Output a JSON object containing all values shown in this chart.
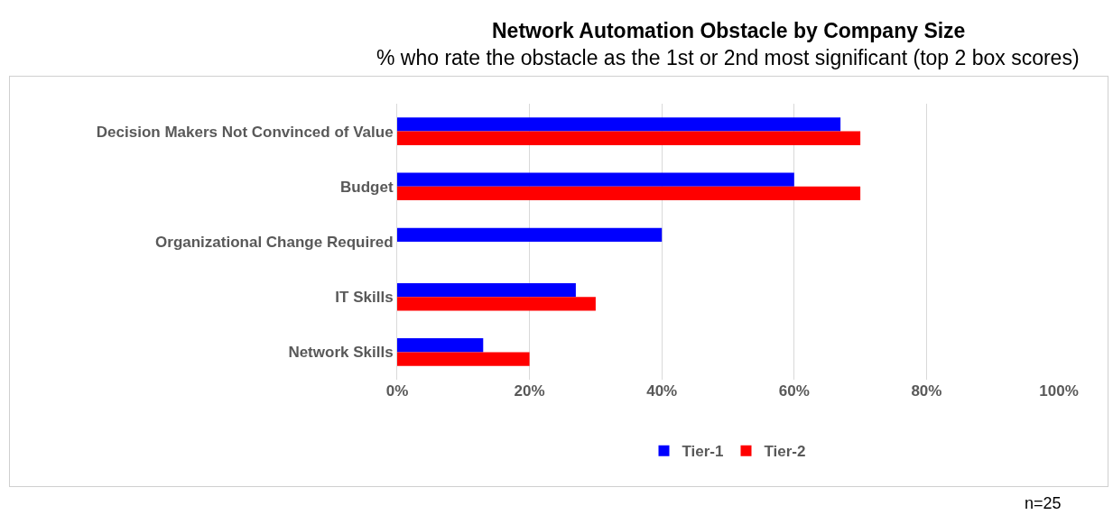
{
  "chart_data": {
    "type": "bar",
    "orientation": "horizontal",
    "title": "Network Automation Obstacle by Company Size",
    "subtitle": "% who rate the obstacle as the 1st or 2nd most significant (top 2 box scores)",
    "categories": [
      "Decision Makers Not Convinced of Value",
      "Budget",
      "Organizational Change Required",
      "IT Skills",
      "Network Skills"
    ],
    "series": [
      {
        "name": "Tier-1",
        "color": "#0000ff",
        "values": [
          67,
          60,
          40,
          27,
          13
        ]
      },
      {
        "name": "Tier-2",
        "color": "#ff0000",
        "values": [
          70,
          70,
          0,
          30,
          20
        ]
      }
    ],
    "xlim": [
      0,
      100
    ],
    "xticks": [
      {
        "value": 0,
        "label": "0%"
      },
      {
        "value": 20,
        "label": "20%"
      },
      {
        "value": 40,
        "label": "40%"
      },
      {
        "value": 60,
        "label": "60%"
      },
      {
        "value": 80,
        "label": "80%"
      },
      {
        "value": 100,
        "label": "100%"
      }
    ],
    "grid": "x",
    "legend": "bottom",
    "annotations": [
      "n=25"
    ]
  }
}
